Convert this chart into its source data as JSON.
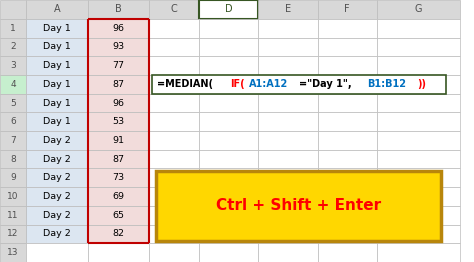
{
  "col_a": [
    "Day 1",
    "Day 1",
    "Day 1",
    "Day 1",
    "Day 1",
    "Day 1",
    "Day 2",
    "Day 2",
    "Day 2",
    "Day 2",
    "Day 2",
    "Day 2"
  ],
  "col_b": [
    96,
    93,
    77,
    87,
    96,
    53,
    91,
    87,
    73,
    69,
    65,
    82
  ],
  "col_headers": [
    "",
    "A",
    "B",
    "C",
    "D",
    "E",
    "F",
    "G"
  ],
  "active_row": 4,
  "formula_parts": [
    [
      "=MEDIAN(",
      "#000000"
    ],
    [
      "IF(",
      "#FF0000"
    ],
    [
      "A1:A12",
      "#0070C0"
    ],
    [
      "=\"Day 1\",",
      "#000000"
    ],
    [
      "B1:B12",
      "#0070C0"
    ],
    [
      "))",
      "#FF0000"
    ]
  ],
  "ctrl_text": "Ctrl + Shift + Enter",
  "ctrl_box_color": "#FFD700",
  "ctrl_text_color": "#FF0000",
  "bg_color": "#FFFFFF",
  "header_bg": "#D8D8D8",
  "col_a_bg": "#DCE6F1",
  "col_b_bg": "#F2DCDB",
  "grid_color": "#BBBBBB",
  "active_col_header_color": "#375623",
  "red_border_color": "#C00000",
  "formula_border_color": "#375623",
  "num_rows": 13
}
